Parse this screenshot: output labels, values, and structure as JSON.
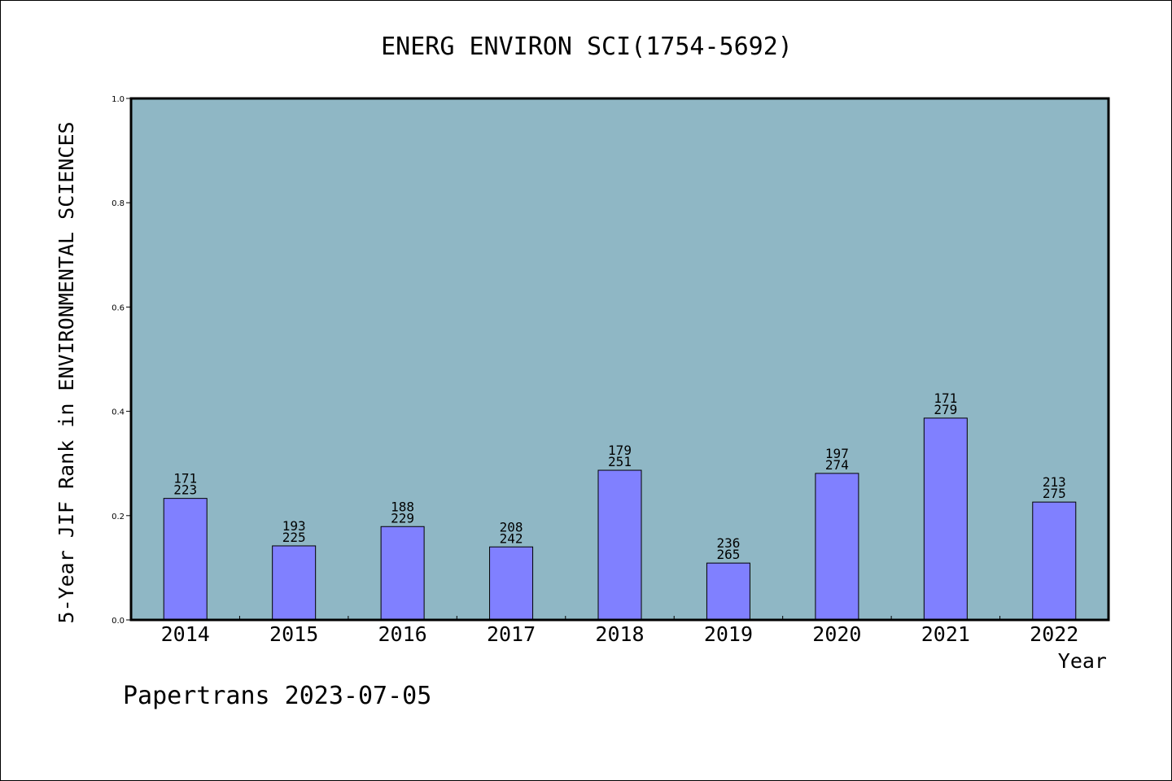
{
  "chart_data": {
    "type": "bar",
    "title": "ENERG ENVIRON SCI(1754-5692)",
    "xlabel": "Year",
    "ylabel": "5-Year JIF Rank in ENVIRONMENTAL SCIENCES",
    "ylim": [
      0,
      1.0
    ],
    "yticks": [
      "0.0",
      "0.2",
      "0.4",
      "0.6",
      "0.8",
      "1.0"
    ],
    "grid": false,
    "categories": [
      "2014",
      "2015",
      "2016",
      "2017",
      "2018",
      "2019",
      "2020",
      "2021",
      "2022"
    ],
    "values": [
      0.233,
      0.142,
      0.179,
      0.14,
      0.287,
      0.109,
      0.281,
      0.387,
      0.226
    ],
    "rank_labels": [
      {
        "rank": "171",
        "total": "223"
      },
      {
        "rank": "193",
        "total": "225"
      },
      {
        "rank": "188",
        "total": "229"
      },
      {
        "rank": "208",
        "total": "242"
      },
      {
        "rank": "179",
        "total": "251"
      },
      {
        "rank": "236",
        "total": "265"
      },
      {
        "rank": "197",
        "total": "274"
      },
      {
        "rank": "171",
        "total": "279"
      },
      {
        "rank": "213",
        "total": "275"
      }
    ],
    "colors": {
      "plot_background": "#8fb7c5",
      "bar_fill": "#8080ff",
      "bar_stroke": "#000000"
    }
  },
  "footer": {
    "text": "Papertrans 2023-07-05"
  }
}
